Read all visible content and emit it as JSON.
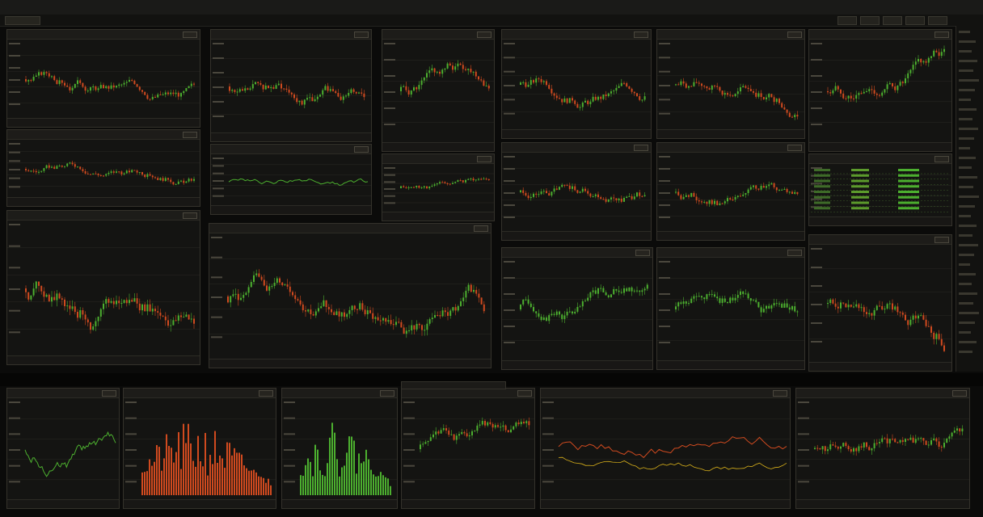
{
  "window": {
    "title": "",
    "menu": [
      "",
      "",
      "",
      "",
      ""
    ],
    "right_menu": [
      "",
      ""
    ]
  },
  "toolbar": {
    "symbol_box": ""
  },
  "colors": {
    "up": "#4caf2f",
    "down": "#d04a1f",
    "line_yellow": "#d8b01a",
    "grid": "#2a2924",
    "background": "#141412"
  },
  "icons": [
    "toolbar-button-icon",
    "panel-menu-icon"
  ],
  "panels": [
    {
      "id": "p1",
      "label": "",
      "type": "candles",
      "bias": 0.55
    },
    {
      "id": "p2",
      "label": "",
      "type": "candles",
      "bias": 0.5
    },
    {
      "id": "p3",
      "label": "",
      "type": "candles",
      "bias": 0.5
    },
    {
      "id": "p4",
      "label": "",
      "type": "candles",
      "bias": 0.6
    },
    {
      "id": "p5",
      "label": "",
      "type": "candles",
      "bias": 0.45
    },
    {
      "id": "p6",
      "label": "",
      "type": "candles",
      "bias": 0.6
    },
    {
      "id": "p7",
      "label": "",
      "type": "candles",
      "bias": 0.5
    },
    {
      "id": "p8",
      "label": "",
      "type": "line",
      "bias": 0.5
    },
    {
      "id": "p9",
      "label": "",
      "type": "candles",
      "bias": 0.65
    },
    {
      "id": "p10",
      "label": "",
      "type": "candles",
      "bias": 0.5
    },
    {
      "id": "p11",
      "label": "",
      "type": "candles",
      "bias": 0.35
    },
    {
      "id": "p12",
      "label": "",
      "type": "table",
      "bias": 0.5
    },
    {
      "id": "p13",
      "label": "",
      "type": "candles",
      "bias": 0.5
    },
    {
      "id": "p14",
      "label": "",
      "type": "candles",
      "bias": 0.45
    },
    {
      "id": "p15",
      "label": "",
      "type": "greenline",
      "bias": 0.6
    },
    {
      "id": "p16",
      "label": "",
      "type": "greenline",
      "bias": 0.55
    },
    {
      "id": "p17",
      "label": "",
      "type": "candles",
      "bias": 0.3
    },
    {
      "id": "p18",
      "label": "",
      "type": "line",
      "bias": 0.5
    },
    {
      "id": "p19",
      "label": "",
      "type": "bars",
      "bias": 0.2
    },
    {
      "id": "p20",
      "label": "",
      "type": "bars",
      "bias": 0.9
    },
    {
      "id": "p21",
      "label": "",
      "type": "candles",
      "bias": 0.4
    },
    {
      "id": "p22",
      "label": "",
      "type": "dualline",
      "bias": 0.5
    },
    {
      "id": "p23",
      "label": "",
      "type": "candles",
      "bias": 0.5
    }
  ],
  "bottom_tab": ""
}
